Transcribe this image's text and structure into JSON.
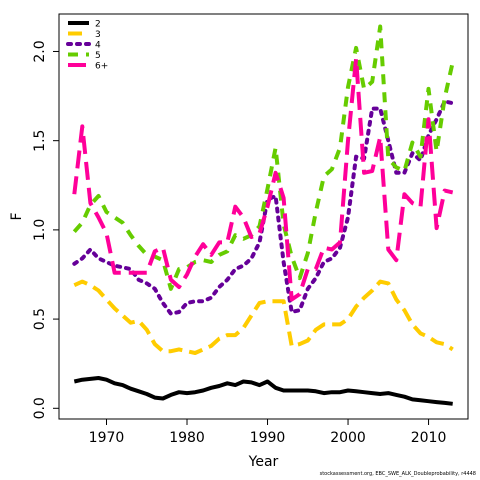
{
  "chart_data": {
    "type": "line",
    "title": "",
    "xlabel": "Year",
    "ylabel": "F",
    "xlim": [
      1964.1,
      2014.9
    ],
    "ylim": [
      -0.06,
      2.21
    ],
    "xticks": [
      1970,
      1980,
      1990,
      2000,
      2010
    ],
    "yticks": [
      0.0,
      0.5,
      1.0,
      1.5,
      2.0
    ],
    "ytick_labels": [
      "0.0",
      "0.5",
      "1.0",
      "1.5",
      "2.0"
    ],
    "legend_position": "top-left",
    "grid": false,
    "x": [
      1966,
      1967,
      1968,
      1969,
      1970,
      1971,
      1972,
      1973,
      1974,
      1975,
      1976,
      1977,
      1978,
      1979,
      1980,
      1981,
      1982,
      1983,
      1984,
      1985,
      1986,
      1987,
      1988,
      1989,
      1990,
      1991,
      1992,
      1993,
      1994,
      1995,
      1996,
      1997,
      1998,
      1999,
      2000,
      2001,
      2002,
      2003,
      2004,
      2005,
      2006,
      2007,
      2008,
      2009,
      2010,
      2011,
      2012,
      2013
    ],
    "series": [
      {
        "name": "2",
        "color": "#000000",
        "dash": "solid",
        "values": [
          0.15,
          0.16,
          0.165,
          0.17,
          0.16,
          0.14,
          0.13,
          0.11,
          0.095,
          0.08,
          0.06,
          0.055,
          0.075,
          0.09,
          0.085,
          0.09,
          0.1,
          0.115,
          0.125,
          0.14,
          0.13,
          0.15,
          0.145,
          0.13,
          0.15,
          0.115,
          0.1,
          0.1,
          0.1,
          0.1,
          0.095,
          0.085,
          0.09,
          0.09,
          0.1,
          0.095,
          0.09,
          0.085,
          0.08,
          0.085,
          0.075,
          0.065,
          0.05,
          0.045,
          0.04,
          0.035,
          0.03,
          0.025
        ]
      },
      {
        "name": "3",
        "color": "#ffcc00",
        "dash": "long",
        "values": [
          0.69,
          0.71,
          0.69,
          0.66,
          0.61,
          0.56,
          0.52,
          0.48,
          0.49,
          0.44,
          0.36,
          0.32,
          0.32,
          0.33,
          0.32,
          0.31,
          0.33,
          0.35,
          0.39,
          0.41,
          0.41,
          0.45,
          0.52,
          0.59,
          0.6,
          0.6,
          0.6,
          0.35,
          0.36,
          0.38,
          0.44,
          0.47,
          0.47,
          0.47,
          0.5,
          0.57,
          0.62,
          0.66,
          0.71,
          0.7,
          0.61,
          0.55,
          0.47,
          0.42,
          0.4,
          0.37,
          0.36,
          0.33
        ]
      },
      {
        "name": "4",
        "color": "#660099",
        "dash": "dot",
        "values": [
          0.81,
          0.84,
          0.89,
          0.84,
          0.82,
          0.8,
          0.79,
          0.78,
          0.72,
          0.7,
          0.67,
          0.59,
          0.53,
          0.54,
          0.59,
          0.6,
          0.6,
          0.62,
          0.68,
          0.72,
          0.78,
          0.8,
          0.84,
          0.93,
          1.17,
          1.19,
          0.82,
          0.54,
          0.55,
          0.67,
          0.73,
          0.82,
          0.84,
          0.9,
          1.07,
          1.41,
          1.4,
          1.68,
          1.68,
          1.5,
          1.32,
          1.32,
          1.43,
          1.39,
          1.53,
          1.62,
          1.72,
          1.71
        ]
      },
      {
        "name": "5",
        "color": "#66cc00",
        "dash": "dash",
        "values": [
          0.99,
          1.04,
          1.14,
          1.19,
          1.1,
          1.07,
          1.04,
          0.97,
          0.91,
          0.86,
          0.85,
          0.83,
          0.67,
          0.78,
          0.79,
          0.82,
          0.83,
          0.82,
          0.86,
          0.88,
          0.97,
          0.95,
          0.97,
          1.02,
          1.23,
          1.46,
          1.03,
          0.85,
          0.73,
          0.87,
          1.1,
          1.3,
          1.34,
          1.46,
          1.8,
          2.02,
          1.79,
          1.83,
          2.14,
          1.4,
          1.35,
          1.33,
          1.49,
          1.41,
          1.79,
          1.44,
          1.74,
          1.94
        ]
      },
      {
        "name": "6+",
        "color": "#ff0099",
        "dash": "longdash",
        "values": [
          1.2,
          1.58,
          1.15,
          1.07,
          0.98,
          0.76,
          0.76,
          0.76,
          0.76,
          0.76,
          0.88,
          0.9,
          0.72,
          0.68,
          0.75,
          0.85,
          0.92,
          0.86,
          0.93,
          0.93,
          1.13,
          1.07,
          0.96,
          0.98,
          1.13,
          1.32,
          1.18,
          0.61,
          0.64,
          0.78,
          0.78,
          0.9,
          0.89,
          0.93,
          1.5,
          1.96,
          1.32,
          1.33,
          1.52,
          0.89,
          0.83,
          1.2,
          1.15,
          1.13,
          1.62,
          1.01,
          1.22,
          1.21
        ]
      }
    ]
  },
  "footnote": "stockassessment.org, EBC_SWE_ALK_Doubleprobability, r4448"
}
